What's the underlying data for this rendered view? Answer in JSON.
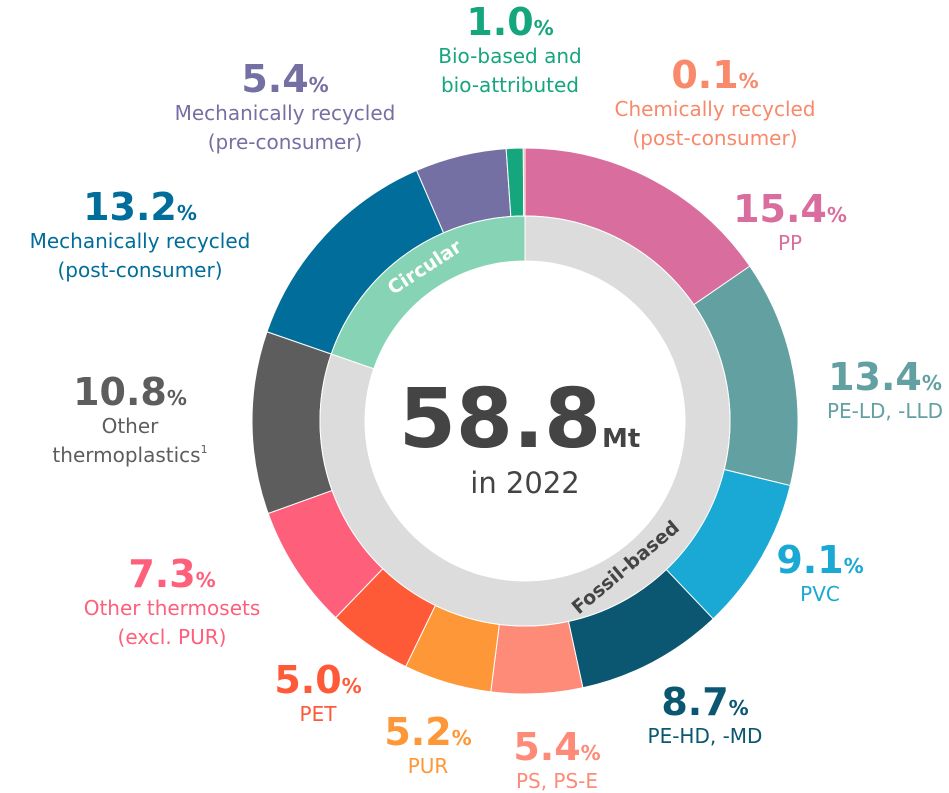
{
  "chart_data": {
    "type": "donut",
    "categories": [
      [
        "PP"
      ],
      [
        "PE-LD, -LLD"
      ],
      [
        "PVC"
      ],
      [
        "PE-HD, -MD"
      ],
      [
        "PS, PS-E"
      ],
      [
        "PUR"
      ],
      [
        "PET"
      ],
      [
        "Other thermosets",
        "(excl. PUR)"
      ],
      [
        "Other",
        "thermoplastics"
      ],
      [
        "Mechanically recycled",
        "(post-consumer)"
      ],
      [
        "Mechanically recycled",
        "(pre-consumer)"
      ],
      [
        "Bio-based and",
        "bio-attributed"
      ],
      [
        "Chemically recycled",
        "(post-consumer)"
      ]
    ],
    "values": [
      15.4,
      13.4,
      9.1,
      8.7,
      5.4,
      5.2,
      5.0,
      7.3,
      10.8,
      13.2,
      5.4,
      1.0,
      0.1
    ],
    "value_labels": [
      "15.4",
      "13.4",
      "9.1",
      "8.7",
      "5.4",
      "5.2",
      "5.0",
      "7.3",
      "10.8",
      "13.2",
      "5.4",
      "1.0",
      "0.1"
    ],
    "unit": "%",
    "colors": [
      "#d96e9e",
      "#62a0a2",
      "#1aa8d4",
      "#0b5670",
      "#fe8a78",
      "#fe9737",
      "#fe5a38",
      "#fe5f7b",
      "#5d5d5d",
      "#006d9a",
      "#7570a3",
      "#15a67e",
      "#f8896a"
    ],
    "footnote_marks": {
      "8": "1"
    },
    "inner_ring": {
      "categories": [
        "Fossil-based",
        "Circular"
      ],
      "values": [
        80.3,
        19.7
      ],
      "colors": [
        "#dcdcdc",
        "#86d3b5"
      ]
    },
    "total": {
      "value": 58.8,
      "unit": "Mt",
      "caption": "in 2022"
    }
  }
}
